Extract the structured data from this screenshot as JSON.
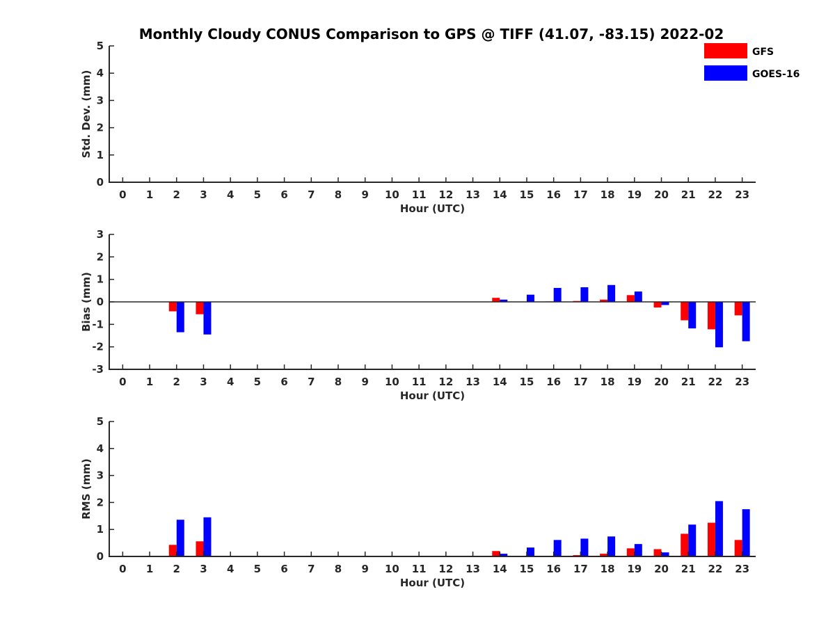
{
  "chart_data": {
    "type": "bar",
    "title": "Monthly Cloudy CONUS Comparison to GPS @ TIFF (41.07, -83.15) 2022-02",
    "legend": {
      "placement": "top-right",
      "entries": [
        "GFS",
        "GOES-16"
      ]
    },
    "colors": {
      "GFS": "#ff0000",
      "GOES-16": "#0000ff"
    },
    "categories": [
      "0",
      "1",
      "2",
      "3",
      "4",
      "5",
      "6",
      "7",
      "8",
      "9",
      "10",
      "11",
      "12",
      "13",
      "14",
      "15",
      "16",
      "17",
      "18",
      "19",
      "20",
      "21",
      "22",
      "23"
    ],
    "panels": [
      {
        "id": "stddev",
        "ylabel": "Std. Dev. (mm)",
        "xlabel": "Hour (UTC)",
        "ylim": [
          0,
          5
        ],
        "yticks": [
          "0",
          "1",
          "2",
          "3",
          "4",
          "5"
        ],
        "series": [
          {
            "name": "GFS",
            "values": [
              0,
              0,
              0,
              0,
              0,
              0,
              0,
              0,
              0,
              0,
              0,
              0,
              0,
              0,
              0,
              0,
              0,
              0,
              0,
              0,
              0,
              0,
              0,
              0
            ]
          },
          {
            "name": "GOES-16",
            "values": [
              0,
              0,
              0,
              0,
              0,
              0,
              0,
              0,
              0,
              0,
              0,
              0,
              0,
              0,
              0,
              0,
              0,
              0,
              0,
              0,
              0,
              0,
              0,
              0
            ]
          }
        ]
      },
      {
        "id": "bias",
        "ylabel": "Bias (mm)",
        "xlabel": "Hour (UTC)",
        "ylim": [
          -3,
          3
        ],
        "yticks": [
          "-3",
          "-2",
          "-1",
          "0",
          "1",
          "2",
          "3"
        ],
        "zero_line": true,
        "series": [
          {
            "name": "GFS",
            "values": [
              0,
              0,
              -0.42,
              -0.55,
              0,
              0,
              0,
              0,
              0,
              0,
              0,
              0,
              0,
              0,
              0.18,
              0,
              0.02,
              0.04,
              0.1,
              0.3,
              -0.25,
              -0.82,
              -1.22,
              -0.6
            ]
          },
          {
            "name": "GOES-16",
            "values": [
              0,
              0,
              -1.35,
              -1.45,
              0,
              0,
              0,
              0,
              0,
              0,
              0,
              0,
              0,
              0,
              0.1,
              0.32,
              0.62,
              0.65,
              0.75,
              0.46,
              -0.14,
              -1.18,
              -2.02,
              -1.75
            ]
          }
        ]
      },
      {
        "id": "rms",
        "ylabel": "RMS (mm)",
        "xlabel": "Hour (UTC)",
        "ylim": [
          0,
          5
        ],
        "yticks": [
          "0",
          "1",
          "2",
          "3",
          "4",
          "5"
        ],
        "series": [
          {
            "name": "GFS",
            "values": [
              0,
              0,
              0.43,
              0.56,
              0,
              0,
              0,
              0,
              0,
              0,
              0,
              0,
              0,
              0,
              0.2,
              0,
              0.02,
              0.05,
              0.1,
              0.3,
              0.27,
              0.84,
              1.25,
              0.61
            ]
          },
          {
            "name": "GOES-16",
            "values": [
              0,
              0,
              1.36,
              1.45,
              0,
              0,
              0,
              0,
              0,
              0,
              0,
              0,
              0,
              0,
              0.1,
              0.33,
              0.61,
              0.66,
              0.74,
              0.46,
              0.15,
              1.18,
              2.05,
              1.75
            ]
          }
        ]
      }
    ]
  }
}
